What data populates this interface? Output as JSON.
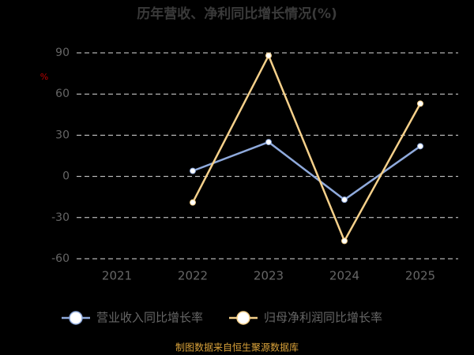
{
  "chart_data": {
    "type": "line",
    "title": "历年营收、净利同比增长情况(%)",
    "y_label": "%",
    "categories": [
      "2021",
      "2022",
      "2023",
      "2024",
      "2025"
    ],
    "series": [
      {
        "name": "营业收入同比增长率",
        "color": "#8faadc",
        "values": [
          null,
          4,
          25,
          -17,
          22
        ]
      },
      {
        "name": "归母净利润同比增长率",
        "color": "#f5d08a",
        "values": [
          null,
          -19,
          88,
          -47,
          53
        ]
      }
    ],
    "ylim": [
      -60,
      90
    ],
    "yticks": [
      -60,
      -30,
      0,
      30,
      60,
      90
    ],
    "grid": true,
    "footer": "制图数据来自恒生聚源数据库"
  }
}
